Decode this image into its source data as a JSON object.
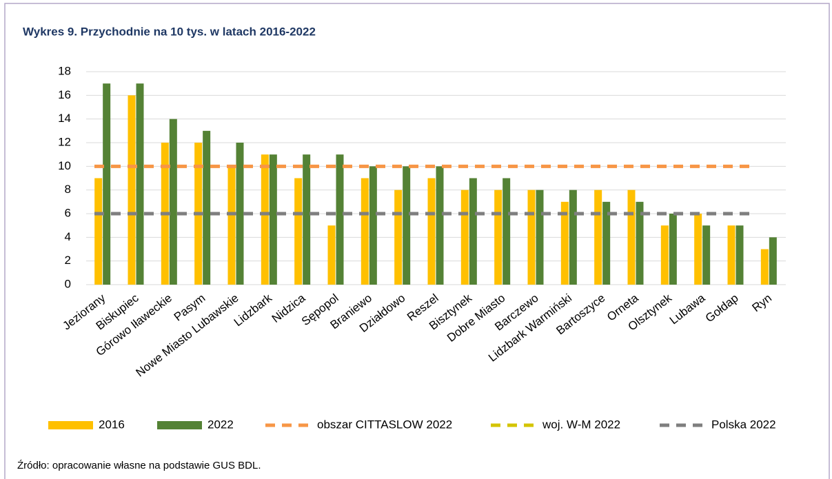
{
  "chart_data": {
    "type": "bar",
    "title": "Wykres 9. Przychodnie na 10 tys. w latach 2016-2022",
    "categories": [
      "Jeziorany",
      "Biskupiec",
      "Górowo Iławeckie",
      "Pasym",
      "Nowe Miasto Lubawskie",
      "Lidzbark",
      "Nidzica",
      "Sępopol",
      "Braniewo",
      "Działdowo",
      "Reszel",
      "Bisztynek",
      "Dobre Miasto",
      "Barczewo",
      "Lidzbark Warmiński",
      "Bartoszyce",
      "Orneta",
      "Olsztynek",
      "Lubawa",
      "Gołdap",
      "Ryn"
    ],
    "series": [
      {
        "name": "2016",
        "color": "#ffc000",
        "values": [
          9,
          16,
          12,
          12,
          10,
          11,
          9,
          5,
          9,
          8,
          9,
          8,
          8,
          8,
          7,
          8,
          8,
          5,
          6,
          5,
          3
        ]
      },
      {
        "name": "2022",
        "color": "#548235",
        "values": [
          17,
          17,
          14,
          13,
          12,
          11,
          11,
          11,
          10,
          10,
          10,
          9,
          9,
          8,
          8,
          7,
          7,
          6,
          5,
          5,
          4
        ]
      }
    ],
    "reference_lines": [
      {
        "name": "obszar CITTASLOW 2022",
        "color": "#f79646",
        "value": 10
      },
      {
        "name": "woj. W-M 2022",
        "color": "#d4c400",
        "value": 6
      },
      {
        "name": "Polska 2022",
        "color": "#7f7f7f",
        "value": 6
      }
    ],
    "ylim": [
      0,
      18
    ],
    "yticks": [
      0,
      2,
      4,
      6,
      8,
      10,
      12,
      14,
      16,
      18
    ],
    "grid": true,
    "source": "Źródło: opracowanie własne na podstawie GUS BDL."
  }
}
